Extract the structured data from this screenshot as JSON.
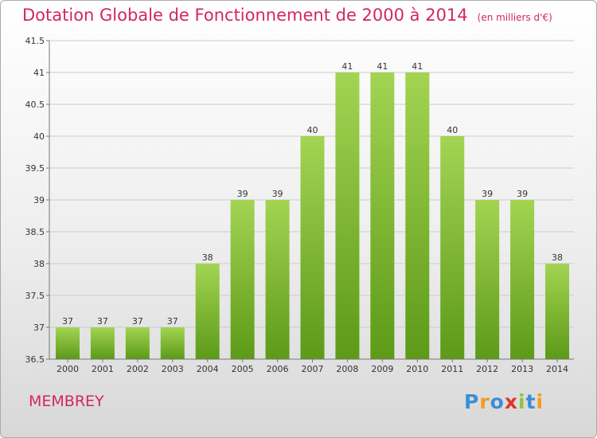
{
  "title": "Dotation Globale de Fonctionnement de 2000 à 2014",
  "unit_note": "(en milliers d'€)",
  "commune": "MEMBREY",
  "logo": {
    "text": "Proxiti",
    "letters": [
      "P",
      "r",
      "o",
      "x",
      "i",
      "t",
      "i"
    ],
    "colors": [
      "#3b8fd6",
      "#f39c1f",
      "#3b8fd6",
      "#e2352b",
      "#8cc63f",
      "#3b8fd6",
      "#f39c1f"
    ]
  },
  "colors": {
    "title": "#d2285a",
    "bar_top": "#a3d453",
    "bar_bottom": "#5c9a17",
    "grid": "#cccccc"
  },
  "chart_data": {
    "type": "bar",
    "title": "Dotation Globale de Fonctionnement de 2000 à 2014",
    "xlabel": "",
    "ylabel": "",
    "categories": [
      "2000",
      "2001",
      "2002",
      "2003",
      "2004",
      "2005",
      "2006",
      "2007",
      "2008",
      "2009",
      "2010",
      "2011",
      "2012",
      "2013",
      "2014"
    ],
    "values": [
      37,
      37,
      37,
      37,
      38,
      39,
      39,
      40,
      41,
      41,
      41,
      40,
      39,
      39,
      38
    ],
    "data_labels": [
      "37",
      "37",
      "37",
      "37",
      "38",
      "39",
      "39",
      "40",
      "41",
      "41",
      "41",
      "40",
      "39",
      "39",
      "38"
    ],
    "ylim": [
      36.5,
      41.5
    ],
    "yticks": [
      "36.5",
      "37",
      "37.5",
      "38",
      "38.5",
      "39",
      "39.5",
      "40",
      "40.5",
      "41",
      "41.5"
    ],
    "grid": true
  }
}
